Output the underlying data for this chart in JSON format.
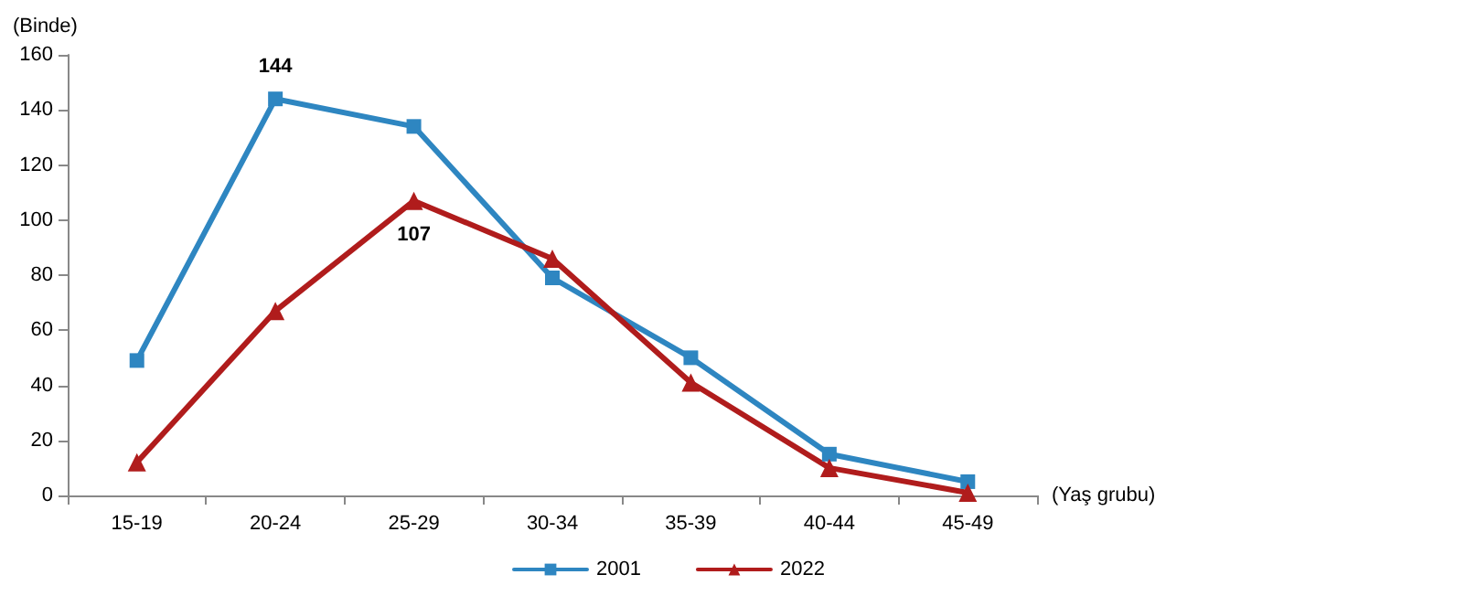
{
  "chart_data": {
    "type": "line",
    "ylabel": "(Binde)",
    "xlabel": "(Yaş grubu)",
    "categories": [
      "15-19",
      "20-24",
      "25-29",
      "30-34",
      "35-39",
      "40-44",
      "45-49"
    ],
    "series": [
      {
        "name": "2001",
        "color": "#2e86c1",
        "marker": "square",
        "values": [
          49,
          144,
          134,
          79,
          50,
          15,
          5
        ],
        "value_labels": [
          null,
          "144",
          null,
          null,
          null,
          null,
          null
        ]
      },
      {
        "name": "2022",
        "color": "#b01c1c",
        "marker": "triangle",
        "values": [
          12,
          67,
          107,
          86,
          41,
          10,
          1
        ],
        "value_labels": [
          null,
          null,
          "107",
          null,
          null,
          null,
          null
        ]
      }
    ],
    "ylim": [
      0,
      160
    ],
    "yticks": [
      0,
      20,
      40,
      60,
      80,
      100,
      120,
      140,
      160
    ],
    "grid": false,
    "legend": "bottom",
    "line_style": "solid"
  }
}
